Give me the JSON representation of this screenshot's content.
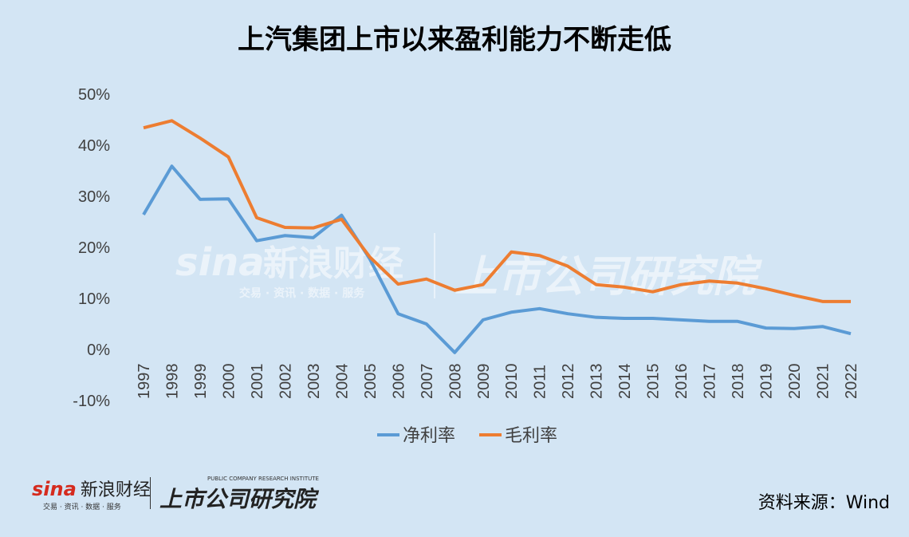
{
  "title": "上汽集团上市以来盈利能力不断走低",
  "source": "资料来源：Wind",
  "logos": {
    "sina_text": "sina",
    "sina_cn": "新浪财经",
    "sina_sub": "交易 · 资讯 · 数据 · 服务",
    "institute": "上市公司研究院",
    "institute_en": "PUBLIC COMPANY RESEARCH INSTITUTE"
  },
  "chart_data": {
    "type": "line",
    "title": "上汽集团上市以来盈利能力不断走低",
    "x": [
      "1997",
      "1998",
      "1999",
      "2000",
      "2001",
      "2002",
      "2003",
      "2004",
      "2005",
      "2006",
      "2007",
      "2008",
      "2009",
      "2010",
      "2011",
      "2012",
      "2013",
      "2014",
      "2015",
      "2016",
      "2017",
      "2018",
      "2019",
      "2020",
      "2021",
      "2022"
    ],
    "ylim": [
      -10,
      50
    ],
    "yticks": [
      "-10%",
      "0%",
      "10%",
      "20%",
      "30%",
      "40%",
      "50%"
    ],
    "grid": false,
    "legend": "bottom",
    "series": [
      {
        "name": "净利率",
        "color": "#5b9bd5",
        "values": [
          26.4,
          35.9,
          29.4,
          29.5,
          21.3,
          22.3,
          21.9,
          26.3,
          17.7,
          7.0,
          5.0,
          -0.6,
          5.8,
          7.3,
          8.0,
          7.0,
          6.3,
          6.1,
          6.1,
          5.8,
          5.5,
          5.5,
          4.2,
          4.1,
          4.5,
          3.1
        ]
      },
      {
        "name": "毛利率",
        "color": "#ed7d31",
        "values": [
          43.4,
          44.8,
          41.4,
          37.7,
          25.8,
          23.9,
          23.8,
          25.5,
          18.1,
          12.8,
          13.8,
          11.6,
          12.7,
          19.1,
          18.4,
          16.3,
          12.7,
          12.2,
          11.3,
          12.7,
          13.4,
          13.0,
          11.9,
          10.6,
          9.4,
          9.4
        ]
      }
    ]
  }
}
